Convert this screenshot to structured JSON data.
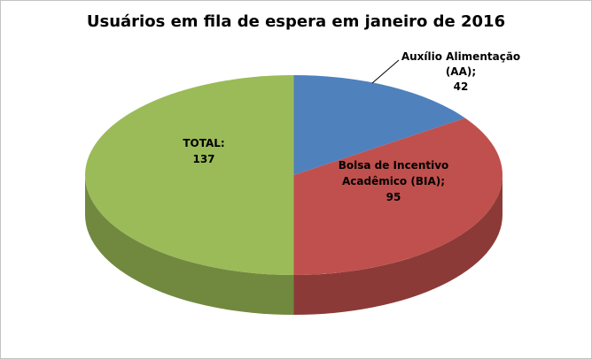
{
  "frame": {
    "background": "#ffffff",
    "border_color": "#c3c3c3"
  },
  "chart_data": {
    "type": "pie",
    "style": "3d",
    "title": "Usuários em fila de espera em janeiro de 2016",
    "legend": "none",
    "start_angle_deg": 0,
    "slices": [
      {
        "id": "aa",
        "name": "Auxílio Alimentação (AA)",
        "value": 42,
        "color": "#4f81bd",
        "side_color": "#38608f"
      },
      {
        "id": "bia",
        "name": "Bolsa de Incentivo Acadêmico (BIA)",
        "value": 95,
        "color": "#c0504d",
        "side_color": "#8c3a37"
      },
      {
        "id": "total",
        "name": "TOTAL",
        "value": 137,
        "color": "#9bbb59",
        "side_color": "#71893f"
      }
    ],
    "labels": {
      "aa": [
        "Auxílio Alimentação",
        "(AA);",
        "42"
      ],
      "bia": [
        "Bolsa de Incentivo",
        "Acadêmico (BIA);",
        "95"
      ],
      "total": [
        "TOTAL:",
        "137"
      ]
    }
  }
}
